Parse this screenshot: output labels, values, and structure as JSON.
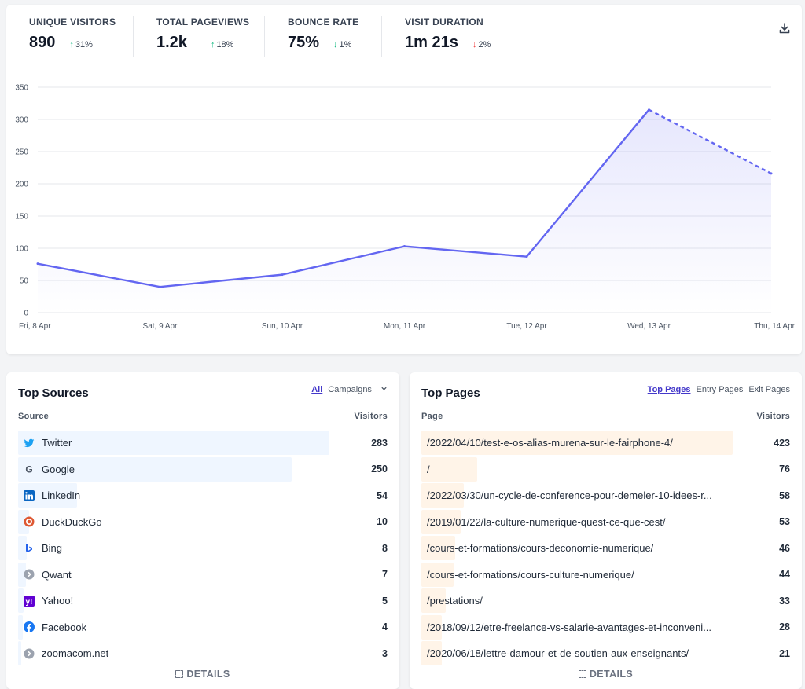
{
  "stats": [
    {
      "label": "UNIQUE VISITORS",
      "value": "890",
      "change": "31%",
      "direction": "up"
    },
    {
      "label": "TOTAL PAGEVIEWS",
      "value": "1.2k",
      "change": "18%",
      "direction": "up"
    },
    {
      "label": "BOUNCE RATE",
      "value": "75%",
      "change": "1%",
      "direction": "down-good"
    },
    {
      "label": "VISIT DURATION",
      "value": "1m 21s",
      "change": "2%",
      "direction": "down-bad"
    }
  ],
  "chart_data": {
    "type": "area",
    "categories": [
      "Fri, 8 Apr",
      "Sat, 9 Apr",
      "Sun, 10 Apr",
      "Mon, 11 Apr",
      "Tue, 12 Apr",
      "Wed, 13 Apr",
      "Thu, 14 Apr"
    ],
    "values": [
      76,
      40,
      59,
      103,
      87,
      315,
      216
    ],
    "incomplete_last_point": true,
    "yticks": [
      0,
      50,
      100,
      150,
      200,
      250,
      300,
      350
    ],
    "ylim": [
      0,
      350
    ],
    "grid": true,
    "color": "#6366f1"
  },
  "sources": {
    "title": "Top Sources",
    "tabs": [
      {
        "label": "All",
        "active": true
      },
      {
        "label": "Campaigns",
        "active": false
      }
    ],
    "col_source": "Source",
    "col_visitors": "Visitors",
    "items": [
      {
        "name": "Twitter",
        "visitors": "283",
        "icon": "twitter-icon",
        "share": 1.0
      },
      {
        "name": "Google",
        "visitors": "250",
        "icon": "google-icon",
        "share": 0.88
      },
      {
        "name": "LinkedIn",
        "visitors": "54",
        "icon": "linkedin-icon",
        "share": 0.19
      },
      {
        "name": "DuckDuckGo",
        "visitors": "10",
        "icon": "duckduckgo-icon",
        "share": 0.035
      },
      {
        "name": "Bing",
        "visitors": "8",
        "icon": "bing-icon",
        "share": 0.028
      },
      {
        "name": "Qwant",
        "visitors": "7",
        "icon": "qwant-icon",
        "share": 0.025
      },
      {
        "name": "Yahoo!",
        "visitors": "5",
        "icon": "yahoo-icon",
        "share": 0.018
      },
      {
        "name": "Facebook",
        "visitors": "4",
        "icon": "facebook-icon",
        "share": 0.014
      },
      {
        "name": "zoomacom.net",
        "visitors": "3",
        "icon": "globe-icon",
        "share": 0.011
      }
    ],
    "details": "DETAILS"
  },
  "pages": {
    "title": "Top Pages",
    "tabs": [
      {
        "label": "Top Pages",
        "active": true
      },
      {
        "label": "Entry Pages",
        "active": false
      },
      {
        "label": "Exit Pages",
        "active": false
      }
    ],
    "col_page": "Page",
    "col_visitors": "Visitors",
    "items": [
      {
        "path": "/2022/04/10/test-e-os-alias-murena-sur-le-fairphone-4/",
        "visitors": "423",
        "share": 1.0
      },
      {
        "path": "/",
        "visitors": "76",
        "share": 0.18
      },
      {
        "path": "/2022/03/30/un-cycle-de-conference-pour-demeler-10-idees-r...",
        "visitors": "58",
        "share": 0.137
      },
      {
        "path": "/2019/01/22/la-culture-numerique-quest-ce-que-cest/",
        "visitors": "53",
        "share": 0.125
      },
      {
        "path": "/cours-et-formations/cours-deconomie-numerique/",
        "visitors": "46",
        "share": 0.109
      },
      {
        "path": "/cours-et-formations/cours-culture-numerique/",
        "visitors": "44",
        "share": 0.104
      },
      {
        "path": "/prestations/",
        "visitors": "33",
        "share": 0.078
      },
      {
        "path": "/2018/09/12/etre-freelance-vs-salarie-avantages-et-inconveni...",
        "visitors": "28",
        "share": 0.066
      },
      {
        "path": "/2020/06/18/lettre-damour-et-de-soutien-aux-enseignants/",
        "visitors": "21",
        "share": 0.05
      }
    ],
    "details": "DETAILS"
  }
}
